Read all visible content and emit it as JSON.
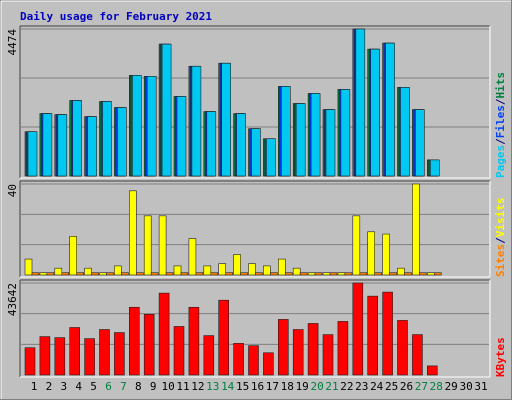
{
  "chart_data": [
    {
      "type": "bar",
      "title": "Daily usage for February 2021",
      "categories": [
        "1",
        "2",
        "3",
        "4",
        "5",
        "6",
        "7",
        "8",
        "9",
        "10",
        "11",
        "12",
        "13",
        "14",
        "15",
        "16",
        "17",
        "18",
        "19",
        "20",
        "21",
        "22",
        "23",
        "24",
        "25",
        "26",
        "27",
        "28",
        "29",
        "30",
        "31"
      ],
      "highlight_categories": [
        5,
        6,
        12,
        13,
        19,
        20,
        26,
        27
      ],
      "highlight_color": "#008040",
      "category_color": "#000000",
      "ylim": [
        0,
        4474
      ],
      "yticks": [
        4474
      ],
      "grid": true,
      "legend_separator": "/",
      "series": [
        {
          "name": "Hits",
          "color": "#008040",
          "values": [
            1348,
            1900,
            1869,
            2298,
            1808,
            2268,
            2084,
            3064,
            3034,
            4014,
            2421,
            3340,
            1961,
            3432,
            1900,
            1440,
            1134,
            2727,
            2206,
            2513,
            2022,
            2635,
            4474,
            3861,
            4045,
            2697,
            2022,
            490,
            null,
            null,
            null
          ]
        },
        {
          "name": "Files",
          "color": "#0040ff",
          "values": [
            1348,
            1900,
            1869,
            2298,
            1808,
            2268,
            2084,
            3064,
            3034,
            4014,
            2421,
            3340,
            1961,
            3432,
            1900,
            1440,
            1134,
            2727,
            2206,
            2513,
            2022,
            2635,
            4474,
            3861,
            4045,
            2697,
            2022,
            490,
            null,
            null,
            null
          ]
        },
        {
          "name": "Pages",
          "color": "#00c8f0",
          "values": [
            1348,
            1900,
            1869,
            2298,
            1808,
            2268,
            2084,
            3064,
            3034,
            4014,
            2421,
            3340,
            1961,
            3432,
            1900,
            1440,
            1134,
            2727,
            2206,
            2513,
            2022,
            2635,
            4474,
            3861,
            4045,
            2697,
            2022,
            490,
            null,
            null,
            null
          ]
        }
      ]
    },
    {
      "type": "bar",
      "ylim": [
        0,
        40
      ],
      "yticks": [
        40
      ],
      "grid": true,
      "legend_separator": "/",
      "series": [
        {
          "name": "Visits",
          "color": "#ffff00",
          "values": [
            7,
            1,
            3,
            17,
            3,
            1,
            4,
            37,
            26,
            26,
            4,
            16,
            4,
            5,
            9,
            5,
            4,
            7,
            3,
            1,
            1,
            1,
            26,
            19,
            18,
            3,
            40,
            1,
            null,
            null,
            null
          ]
        },
        {
          "name": "Sites",
          "color": "#ff8000",
          "values": [
            1,
            1,
            1,
            1,
            1,
            1,
            1,
            1,
            1,
            1,
            1,
            1,
            1,
            1,
            1,
            1,
            1,
            1,
            1,
            1,
            1,
            1,
            1,
            1,
            1,
            1,
            1,
            1,
            null,
            null,
            null
          ]
        }
      ]
    },
    {
      "type": "bar",
      "ylim": [
        0,
        43642
      ],
      "yticks": [
        43642
      ],
      "grid": true,
      "legend_separator": "/",
      "series": [
        {
          "name": "KBytes",
          "color": "#ff0000",
          "values": [
            12949,
            18224,
            17744,
            22540,
            17265,
            21581,
            20142,
            32132,
            28775,
            38846,
            23020,
            32132,
            18704,
            35489,
            15000,
            13908,
            10551,
            26377,
            21581,
            24459,
            19183,
            25418,
            43642,
            37408,
            39326,
            25898,
            19183,
            4316,
            null,
            null,
            null
          ]
        }
      ]
    }
  ]
}
